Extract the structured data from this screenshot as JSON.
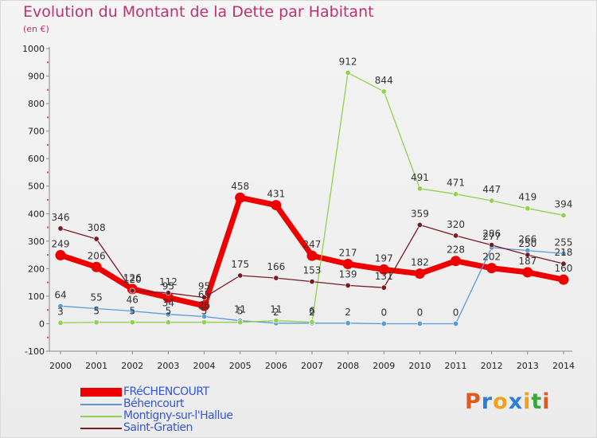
{
  "title": "Evolution du Montant de la Dette par Habitant",
  "unit_label": "(en €)",
  "logo": {
    "text": "Proxiti",
    "letters": [
      "P",
      "r",
      "o",
      "x",
      "i",
      "t",
      "i"
    ],
    "letter_colors": [
      "#e05a1e",
      "#2a7fd6",
      "#f0a21a",
      "#2a7fd6",
      "#f0a21a",
      "#38a83c",
      "#e05a1e"
    ]
  },
  "chart_data": {
    "type": "line",
    "title": "Evolution du Montant de la Dette par Habitant",
    "ylabel": "(en €)",
    "ylim": [
      -100,
      1000
    ],
    "yticks": [
      -100,
      0,
      100,
      200,
      300,
      400,
      500,
      600,
      700,
      800,
      900,
      1000
    ],
    "x": [
      "2000",
      "2001",
      "2002",
      "2003",
      "2004",
      "2005",
      "2006",
      "2007",
      "2008",
      "2009",
      "2010",
      "2011",
      "2012",
      "2013",
      "2014"
    ],
    "grid": false,
    "legend_position": "bottom-left",
    "series": [
      {
        "name": "FRéCHENCOURT",
        "color": "#ee0000",
        "values": [
          249,
          206,
          126,
          95,
          65,
          458,
          431,
          247,
          217,
          197,
          182,
          228,
          202,
          187,
          160
        ],
        "labels": [
          "249",
          "206",
          "126",
          "95",
          "65",
          "458",
          "431",
          "247",
          "217",
          "197",
          "182",
          "228",
          "202",
          "187",
          "160"
        ]
      },
      {
        "name": "Béhencourt",
        "color": "#5b9bd5",
        "values": [
          64,
          55,
          46,
          34,
          26,
          11,
          2,
          2,
          2,
          0,
          0,
          0,
          277,
          266,
          255
        ],
        "labels": [
          "64",
          "55",
          "46",
          "34",
          "26",
          "11",
          "2",
          "2",
          "2",
          "0",
          "0",
          "0",
          "277",
          "266",
          "255"
        ]
      },
      {
        "name": "Montigny-sur-l'Hallue",
        "color": "#92d050",
        "values": [
          3,
          5,
          5,
          5,
          5,
          5,
          11,
          6,
          912,
          844,
          491,
          471,
          447,
          419,
          394
        ],
        "labels": [
          "3",
          "5",
          "5",
          "5",
          "5",
          "5",
          "11",
          "6",
          "912",
          "844",
          "491",
          "471",
          "447",
          "419",
          "394"
        ]
      },
      {
        "name": "Saint-Gratien",
        "color": "#7a1a25",
        "values": [
          346,
          308,
          120,
          112,
          95,
          175,
          166,
          153,
          139,
          131,
          359,
          320,
          286,
          250,
          218
        ],
        "labels": [
          "346",
          "308",
          "120",
          "112",
          "95",
          "175",
          "166",
          "153",
          "139",
          "131",
          "359",
          "320",
          "286",
          "250",
          "218"
        ]
      }
    ]
  }
}
